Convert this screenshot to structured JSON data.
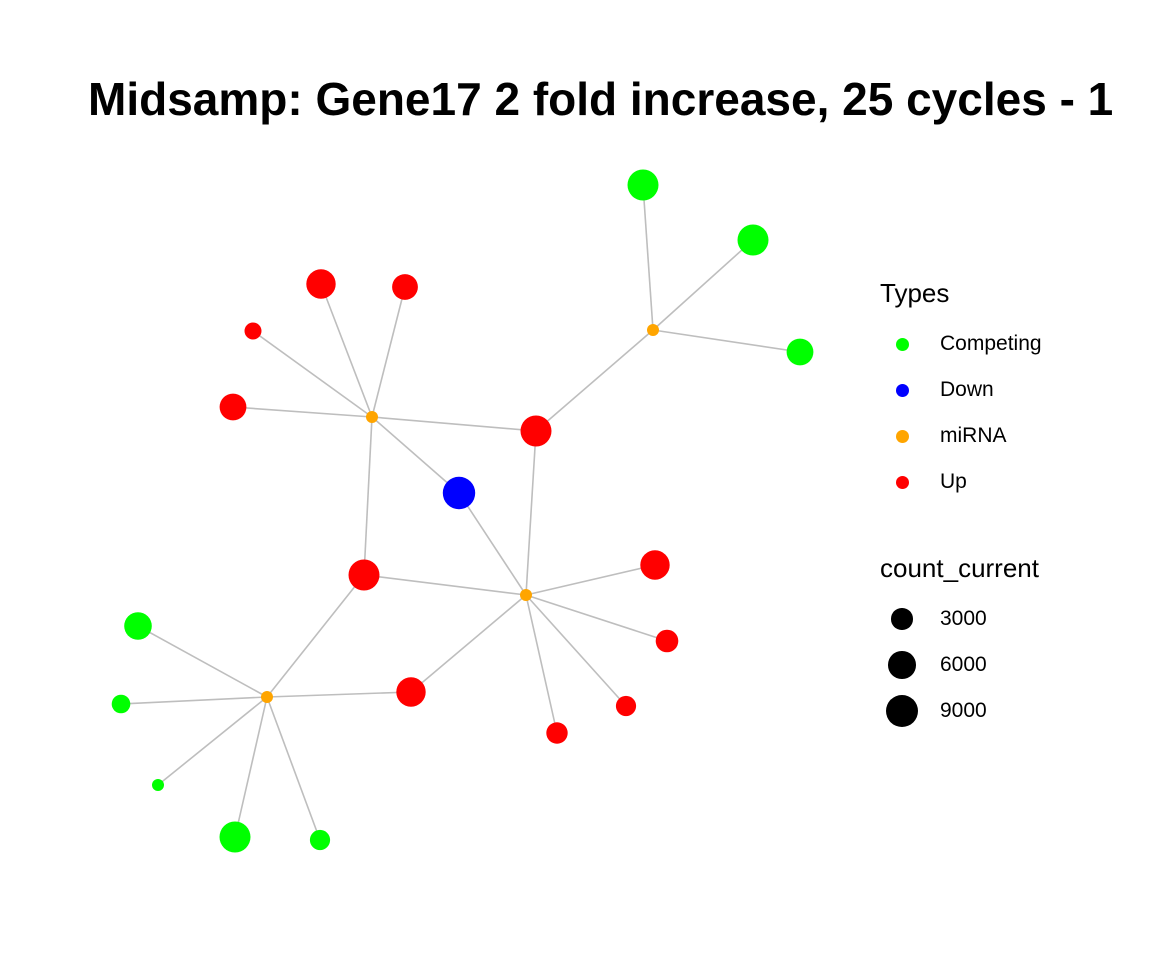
{
  "title": "Midsamp: Gene17 2 fold increase, 25 cycles - 1",
  "colors": {
    "Competing": "#00ff00",
    "Down": "#0000ff",
    "miRNA": "#ffa500",
    "Up": "#ff0000",
    "edge": "#bebebe",
    "size_key": "#000000"
  },
  "legend": {
    "types_title": "Types",
    "types": [
      {
        "label": "Competing",
        "key": "Competing"
      },
      {
        "label": "Down",
        "key": "Down"
      },
      {
        "label": "miRNA",
        "key": "miRNA"
      },
      {
        "label": "Up",
        "key": "Up"
      }
    ],
    "size_title": "count_current",
    "sizes": [
      {
        "label": "3000",
        "value": 3000
      },
      {
        "label": "6000",
        "value": 6000
      },
      {
        "label": "9000",
        "value": 9000
      }
    ]
  },
  "network": {
    "nodes": [
      {
        "id": "m1",
        "type": "miRNA",
        "count": 800
      },
      {
        "id": "m2",
        "type": "miRNA",
        "count": 800
      },
      {
        "id": "m3",
        "type": "miRNA",
        "count": 800
      },
      {
        "id": "m4",
        "type": "miRNA",
        "count": 800
      },
      {
        "id": "d1",
        "type": "Down",
        "count": 9000
      },
      {
        "id": "u1",
        "type": "Up",
        "count": 7000
      },
      {
        "id": "u2",
        "type": "Up",
        "count": 5000
      },
      {
        "id": "u3",
        "type": "Up",
        "count": 1500
      },
      {
        "id": "u4",
        "type": "Up",
        "count": 5500
      },
      {
        "id": "u5",
        "type": "Up",
        "count": 8000
      },
      {
        "id": "u6",
        "type": "Up",
        "count": 8000
      },
      {
        "id": "u7",
        "type": "Up",
        "count": 7000
      },
      {
        "id": "u8",
        "type": "Up",
        "count": 3500
      },
      {
        "id": "u9",
        "type": "Up",
        "count": 2500
      },
      {
        "id": "u10",
        "type": "Up",
        "count": 3000
      },
      {
        "id": "u11",
        "type": "Up",
        "count": 7000
      },
      {
        "id": "c1",
        "type": "Competing",
        "count": 8000
      },
      {
        "id": "c2",
        "type": "Competing",
        "count": 8000
      },
      {
        "id": "c3",
        "type": "Competing",
        "count": 5500
      },
      {
        "id": "c4",
        "type": "Competing",
        "count": 6000
      },
      {
        "id": "c5",
        "type": "Competing",
        "count": 2000
      },
      {
        "id": "c6",
        "type": "Competing",
        "count": 400
      },
      {
        "id": "c7",
        "type": "Competing",
        "count": 8000
      },
      {
        "id": "c8",
        "type": "Competing",
        "count": 2500
      }
    ],
    "edges": [
      [
        "m1",
        "u1"
      ],
      [
        "m1",
        "u2"
      ],
      [
        "m1",
        "u3"
      ],
      [
        "m1",
        "u4"
      ],
      [
        "m1",
        "u5"
      ],
      [
        "m1",
        "d1"
      ],
      [
        "m1",
        "u6"
      ],
      [
        "m2",
        "c1"
      ],
      [
        "m2",
        "c2"
      ],
      [
        "m2",
        "c3"
      ],
      [
        "m2",
        "u5"
      ],
      [
        "m3",
        "d1"
      ],
      [
        "m3",
        "u5"
      ],
      [
        "m3",
        "u6"
      ],
      [
        "m3",
        "u7"
      ],
      [
        "m3",
        "u8"
      ],
      [
        "m3",
        "u9"
      ],
      [
        "m3",
        "u10"
      ],
      [
        "m3",
        "u11"
      ],
      [
        "m4",
        "u6"
      ],
      [
        "m4",
        "u11"
      ],
      [
        "m4",
        "c4"
      ],
      [
        "m4",
        "c5"
      ],
      [
        "m4",
        "c6"
      ],
      [
        "m4",
        "c7"
      ],
      [
        "m4",
        "c8"
      ]
    ]
  }
}
